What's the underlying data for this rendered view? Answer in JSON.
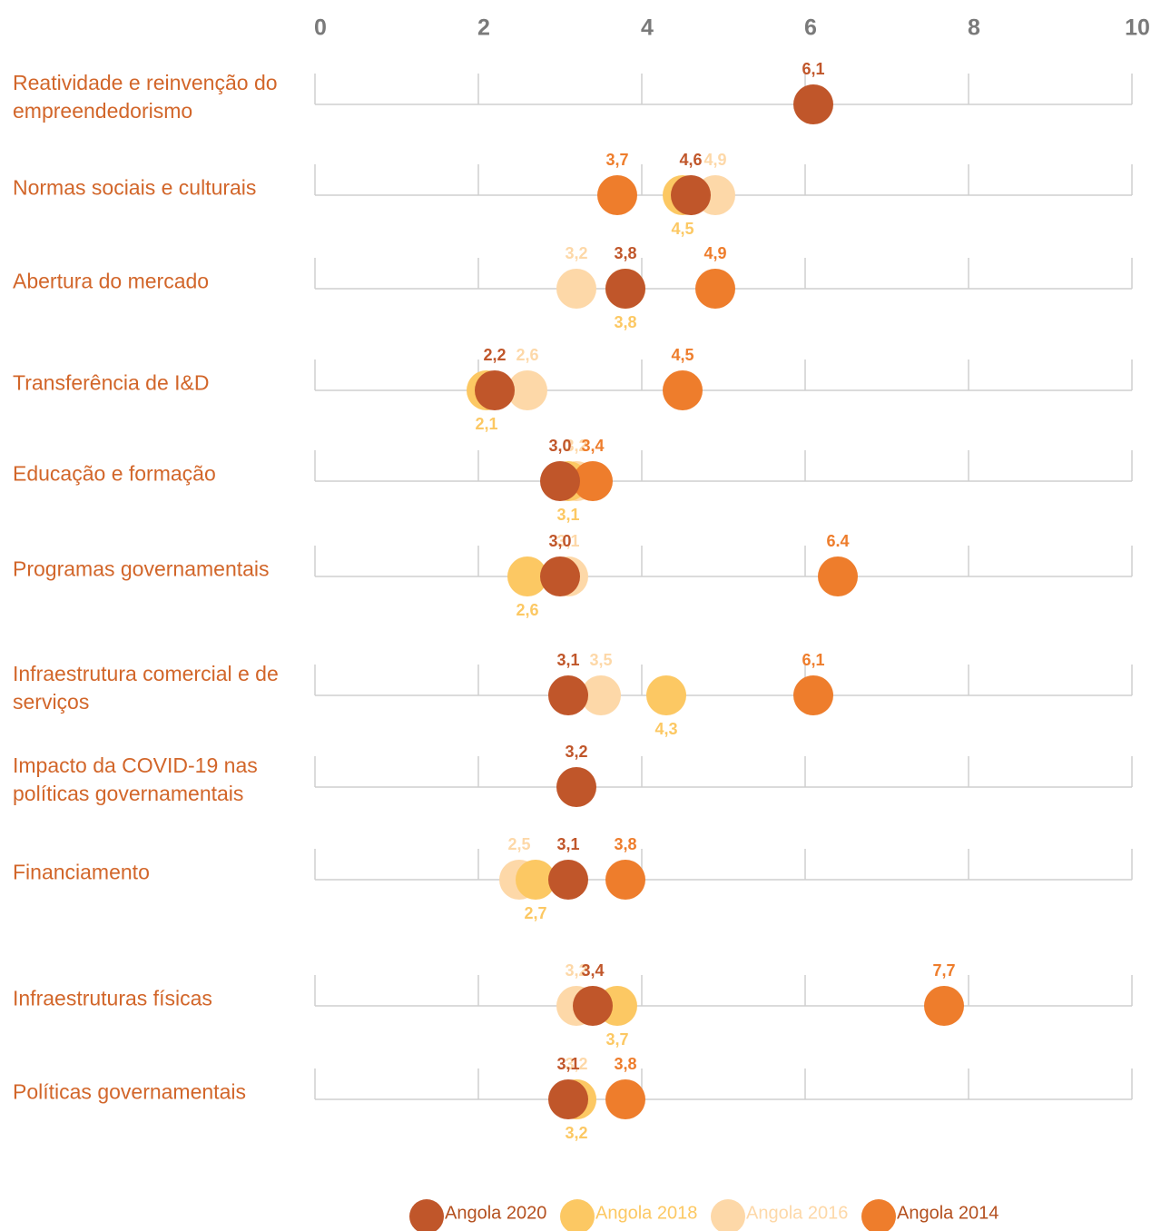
{
  "chart_data": {
    "type": "dot",
    "categories": [
      "Reatividade e reinvenção do empreendedorismo",
      "Normas sociais e culturais",
      "Abertura do mercado",
      "Transferência de I&D",
      "Educação e formação",
      "Programas governamentais",
      "Infraestrutura comercial e de serviços",
      "Impacto da COVID-19 nas políticas governamentais",
      "Financiamento",
      "Infraestruturas físicas",
      "Políticas governamentais"
    ],
    "xlim": [
      0,
      10
    ],
    "xticks": [
      0,
      2,
      4,
      6,
      8,
      10
    ],
    "grid": true,
    "legend": "bottom",
    "series": [
      {
        "name": "Angola 2020",
        "color": "#c0562a",
        "values": [
          6.1,
          4.6,
          3.8,
          2.2,
          3.0,
          3.0,
          3.1,
          3.2,
          3.1,
          3.4,
          3.1
        ],
        "value_labels": [
          "6,1",
          "4,6",
          "3,8",
          "2,2",
          "3,0",
          "3,0",
          "3,1",
          "3,2",
          "3,1",
          "3,4",
          "3,1"
        ]
      },
      {
        "name": "Angola 2018",
        "color": "#fcc863",
        "values": [
          null,
          4.5,
          3.8,
          2.1,
          3.1,
          2.6,
          4.3,
          null,
          2.7,
          3.7,
          3.2
        ],
        "value_labels": [
          null,
          "4,5",
          "3,8",
          "2,1",
          "3,1",
          "2,6",
          "4,3",
          null,
          "2,7",
          "3,7",
          "3,2"
        ]
      },
      {
        "name": "Angola 2016",
        "color": "#fdd8a8",
        "values": [
          null,
          4.9,
          3.2,
          2.6,
          3.2,
          3.1,
          3.5,
          null,
          2.5,
          3.2,
          3.2
        ],
        "value_labels": [
          null,
          "4,9",
          "3,2",
          "2,6",
          "3,2",
          "3,1",
          "3,5",
          null,
          "2,5",
          "3,2",
          "3,2"
        ]
      },
      {
        "name": "Angola 2014",
        "color": "#ee7d2c",
        "values": [
          null,
          3.7,
          4.9,
          4.5,
          3.4,
          6.4,
          6.1,
          null,
          3.8,
          7.7,
          3.8
        ],
        "value_labels": [
          null,
          "3,7",
          "4,9",
          "4,5",
          "3,4",
          "6.4",
          "6,1",
          null,
          "3,8",
          "7,7",
          "3,8"
        ]
      }
    ]
  }
}
